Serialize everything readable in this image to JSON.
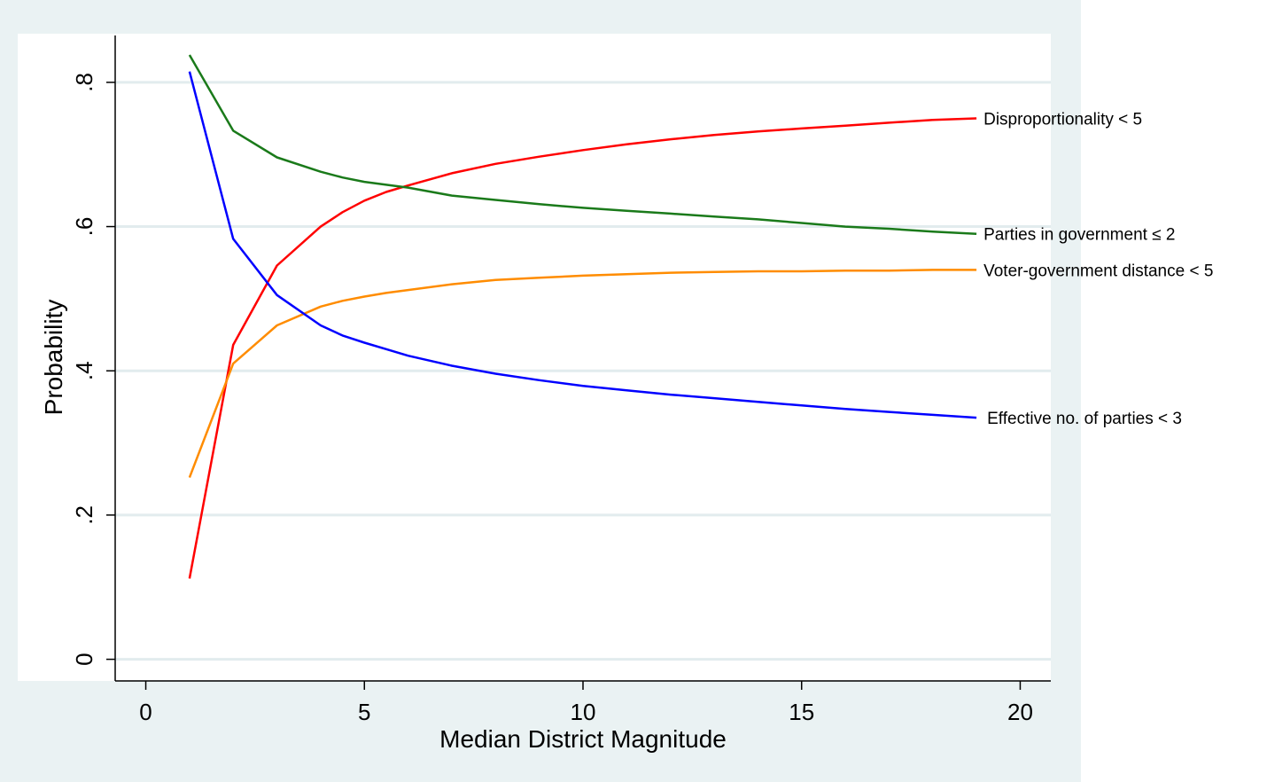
{
  "chart_data": {
    "type": "line",
    "xlabel": "Median District Magnitude",
    "ylabel": "Probability",
    "xlim": [
      -0.7,
      20.7
    ],
    "ylim": [
      -0.03,
      0.865
    ],
    "xticks": [
      0,
      5,
      10,
      15,
      20
    ],
    "xtick_labels": [
      "0",
      "5",
      "10",
      "15",
      "20"
    ],
    "yticks": [
      0,
      0.2,
      0.4,
      0.6,
      0.8
    ],
    "ytick_labels": [
      "0",
      ".2",
      ".4",
      ".6",
      ".8"
    ],
    "grid": "horizontal",
    "legend": "direct labels at line ends",
    "colors": {
      "outer_background": "#eaf2f3",
      "plot_background": "#ffffff",
      "gridline": "#e2ecee"
    },
    "series": [
      {
        "name": "Disproportionality < 5",
        "color": "#ff0000",
        "x": [
          1,
          2,
          3,
          4,
          4.5,
          5,
          5.5,
          6,
          7,
          8,
          9,
          10,
          11,
          12,
          13,
          14,
          15,
          16,
          17,
          18,
          19
        ],
        "y": [
          0.112,
          0.436,
          0.546,
          0.6,
          0.62,
          0.636,
          0.648,
          0.657,
          0.674,
          0.687,
          0.697,
          0.706,
          0.714,
          0.721,
          0.727,
          0.732,
          0.736,
          0.74,
          0.744,
          0.748,
          0.75
        ]
      },
      {
        "name": "Parties in government ≤ 2",
        "color": "#1a7a1a",
        "x": [
          1,
          2,
          3,
          4,
          4.5,
          5,
          5.5,
          6,
          7,
          8,
          9,
          10,
          11,
          12,
          13,
          14,
          15,
          16,
          17,
          18,
          19
        ],
        "y": [
          0.838,
          0.733,
          0.696,
          0.676,
          0.668,
          0.662,
          0.658,
          0.654,
          0.643,
          0.637,
          0.631,
          0.626,
          0.622,
          0.618,
          0.614,
          0.61,
          0.605,
          0.6,
          0.597,
          0.593,
          0.59
        ]
      },
      {
        "name": "Voter-government distance < 5",
        "color": "#ff8c00",
        "x": [
          1,
          2,
          3,
          4,
          4.5,
          5,
          5.5,
          6,
          7,
          8,
          9,
          10,
          11,
          12,
          13,
          14,
          15,
          16,
          17,
          18,
          19
        ],
        "y": [
          0.252,
          0.41,
          0.463,
          0.489,
          0.497,
          0.503,
          0.508,
          0.512,
          0.52,
          0.526,
          0.529,
          0.532,
          0.534,
          0.536,
          0.537,
          0.538,
          0.538,
          0.539,
          0.539,
          0.54,
          0.54
        ]
      },
      {
        "name": "Effective no. of parties < 3",
        "color": "#0000ff",
        "x": [
          1,
          2,
          3,
          4,
          4.5,
          5,
          5.5,
          6,
          7,
          8,
          9,
          10,
          11,
          12,
          13,
          14,
          15,
          16,
          17,
          18,
          19
        ],
        "y": [
          0.815,
          0.583,
          0.505,
          0.463,
          0.449,
          0.439,
          0.43,
          0.421,
          0.407,
          0.396,
          0.387,
          0.379,
          0.373,
          0.367,
          0.362,
          0.357,
          0.352,
          0.347,
          0.343,
          0.339,
          0.335
        ]
      }
    ]
  }
}
